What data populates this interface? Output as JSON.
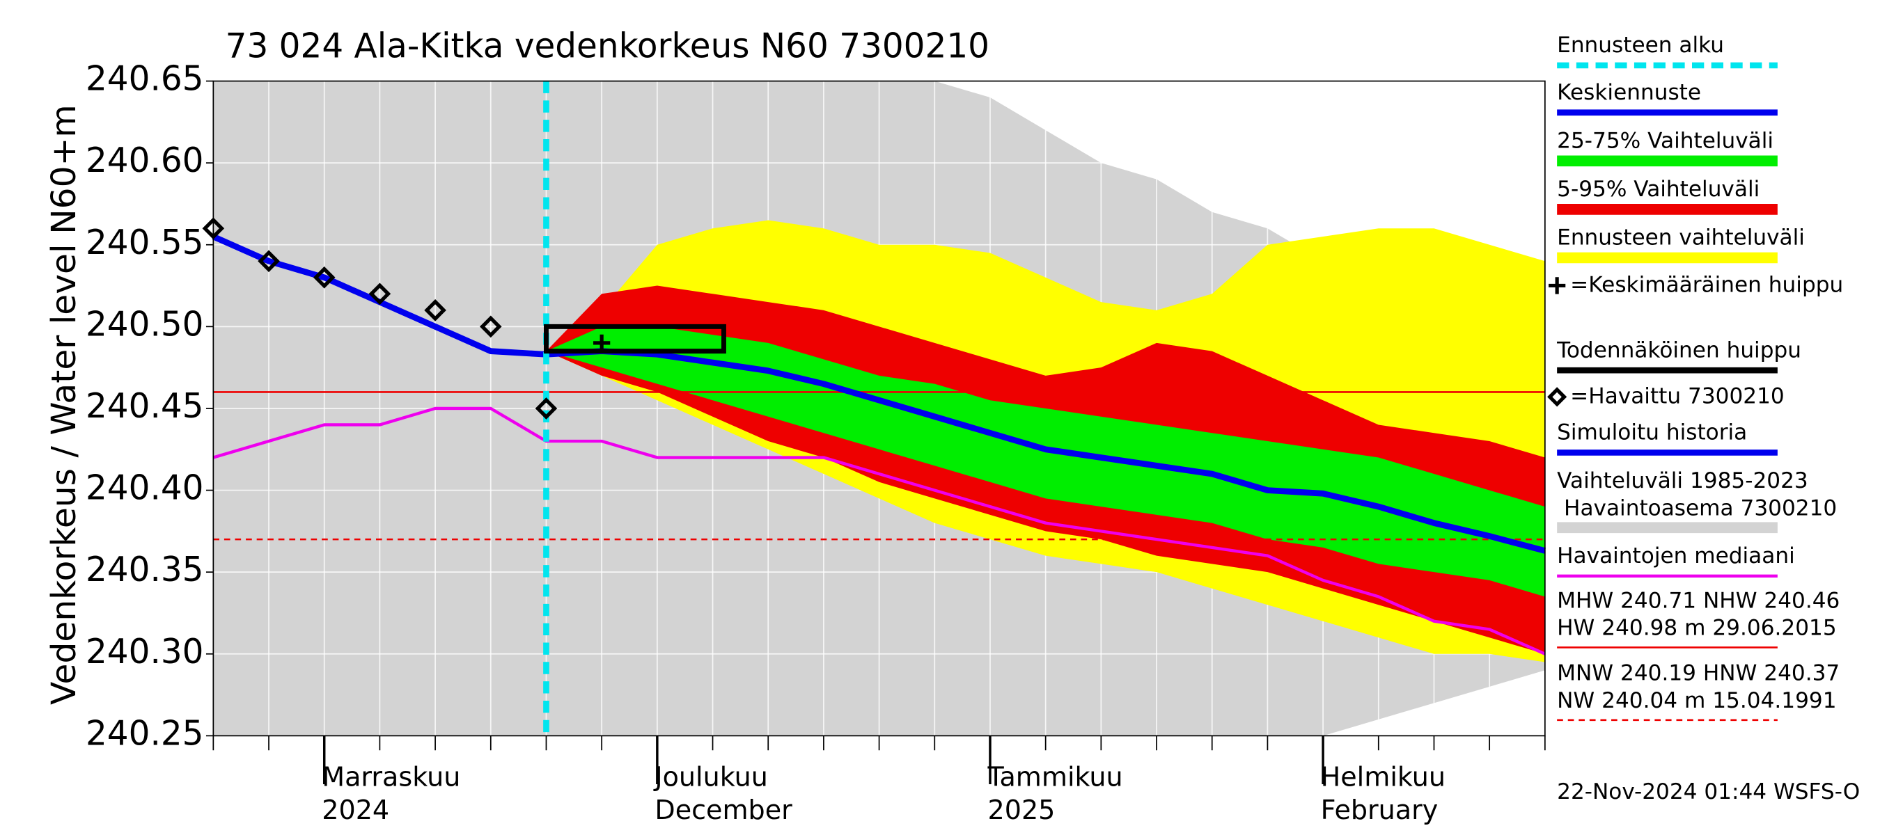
{
  "chart_data": {
    "type": "band-forecast",
    "title": "73 024 Ala-Kitka vedenkorkeus N60 7300210",
    "y_label": "Vedenkorkeus / Water level",
    "y_unit_label": "N60+m",
    "footer": "22-Nov-2024 01:44 WSFS-O",
    "categories": [
      null,
      null,
      "Marraskuu\n2024",
      null,
      null,
      null,
      null,
      null,
      "Joulukuu\nDecember",
      null,
      null,
      null,
      null,
      null,
      "Tammikuu\n2025",
      null,
      null,
      null,
      null,
      null,
      "Helmikuu\nFebruary",
      null,
      null,
      null,
      null
    ],
    "ylim": [
      240.25,
      240.65
    ],
    "yticks": [
      240.25,
      {
        "value": 240.3,
        "label": "240.30"
      },
      240.35,
      {
        "value": 240.4,
        "label": "240.40"
      },
      240.45,
      {
        "value": 240.5,
        "label": "240.50"
      },
      240.55,
      {
        "value": 240.6,
        "label": "240.60"
      },
      240.65
    ],
    "grid": true,
    "series": [
      {
        "name": "Ennusteen alku",
        "kind": "vline",
        "color": "#00e5ee",
        "x": 6
      },
      {
        "name": "Keskiennuste",
        "kind": "line",
        "color": "#0000ee",
        "values": [
          null,
          null,
          null,
          null,
          null,
          null,
          240.483,
          240.485,
          240.483,
          240.478,
          240.473,
          240.465,
          240.455,
          240.445,
          240.435,
          240.425,
          240.42,
          240.415,
          240.41,
          240.4,
          240.398,
          240.39,
          240.38,
          240.372,
          240.363
        ]
      },
      {
        "name": "25-75% Vaihteluväli",
        "kind": "band",
        "color": "#00ee00",
        "upper": [
          null,
          null,
          null,
          null,
          null,
          null,
          240.485,
          240.5,
          240.5,
          240.495,
          240.49,
          240.48,
          240.47,
          240.465,
          240.455,
          240.45,
          240.445,
          240.44,
          240.435,
          240.43,
          240.425,
          240.42,
          240.41,
          240.4,
          240.39
        ],
        "lower": [
          null,
          null,
          null,
          null,
          null,
          null,
          240.485,
          240.475,
          240.465,
          240.455,
          240.445,
          240.435,
          240.425,
          240.415,
          240.405,
          240.395,
          240.39,
          240.385,
          240.38,
          240.37,
          240.365,
          240.355,
          240.35,
          240.345,
          240.335
        ]
      },
      {
        "name": "5-95% Vaihteluväli",
        "kind": "band",
        "color": "#ee0000",
        "upper": [
          null,
          null,
          null,
          null,
          null,
          null,
          240.485,
          240.52,
          240.525,
          240.52,
          240.515,
          240.51,
          240.5,
          240.49,
          240.48,
          240.47,
          240.475,
          240.49,
          240.485,
          240.47,
          240.455,
          240.44,
          240.435,
          240.43,
          240.42
        ],
        "lower": [
          null,
          null,
          null,
          null,
          null,
          null,
          240.485,
          240.47,
          240.46,
          240.445,
          240.43,
          240.42,
          240.405,
          240.395,
          240.385,
          240.375,
          240.37,
          240.36,
          240.355,
          240.35,
          240.34,
          240.33,
          240.32,
          240.31,
          240.3
        ]
      },
      {
        "name": "Ennusteen vaihteluväli",
        "kind": "band",
        "color": "#ffff00",
        "upper": [
          null,
          null,
          null,
          null,
          null,
          null,
          240.485,
          240.51,
          240.55,
          240.56,
          240.565,
          240.56,
          240.55,
          240.55,
          240.545,
          240.53,
          240.515,
          240.51,
          240.52,
          240.55,
          240.555,
          240.56,
          240.56,
          240.55,
          240.54
        ],
        "lower": [
          null,
          null,
          null,
          null,
          null,
          null,
          240.485,
          240.47,
          240.455,
          240.44,
          240.425,
          240.41,
          240.395,
          240.38,
          240.37,
          240.36,
          240.355,
          240.35,
          240.34,
          240.33,
          240.32,
          240.31,
          240.3,
          240.3,
          240.295
        ]
      },
      {
        "name": "=Keskimääräinen huippu",
        "kind": "plus",
        "color": "#000000",
        "x": 7,
        "value": 240.49
      },
      {
        "name": "Todennäköinen huippu",
        "kind": "box",
        "color": "#000000",
        "x": [
          6,
          9.2
        ],
        "values": [
          240.485,
          240.5
        ]
      },
      {
        "name": "=Havaittu 7300210",
        "kind": "scatter",
        "color": "#000000",
        "values": [
          240.56,
          240.54,
          240.53,
          240.52,
          240.51,
          240.5,
          240.45,
          null,
          null,
          null,
          null,
          null,
          null,
          null,
          null,
          null,
          null,
          null,
          null,
          null,
          null,
          null,
          null,
          null,
          null
        ]
      },
      {
        "name": "Simuloitu historia",
        "kind": "line",
        "color": "#0000ee",
        "values": [
          240.555,
          240.54,
          240.53,
          240.515,
          240.5,
          240.485,
          240.483,
          null,
          null,
          null,
          null,
          null,
          null,
          null,
          null,
          null,
          null,
          null,
          null,
          null,
          null,
          null,
          null,
          null,
          null
        ]
      },
      {
        "name": "Vaihteluväli 1985-2023\n Havaintoasema 7300210",
        "kind": "band",
        "color": "#d3d3d3",
        "upper": [
          240.65,
          240.65,
          240.65,
          240.65,
          240.65,
          240.65,
          240.65,
          240.65,
          240.65,
          240.65,
          240.65,
          240.65,
          240.65,
          240.65,
          240.64,
          240.62,
          240.6,
          240.59,
          240.57,
          240.56,
          240.54,
          240.53,
          240.51,
          240.5,
          240.48
        ],
        "lower": [
          240.25,
          240.25,
          240.25,
          240.25,
          240.25,
          240.25,
          240.25,
          240.25,
          240.25,
          240.25,
          240.25,
          240.25,
          240.25,
          240.25,
          240.25,
          240.25,
          240.25,
          240.25,
          240.25,
          240.25,
          240.25,
          240.26,
          240.27,
          240.28,
          240.29
        ]
      },
      {
        "name": "Havaintojen mediaani",
        "kind": "line",
        "color": "#ee00ee",
        "values": [
          240.42,
          240.43,
          240.44,
          240.44,
          240.45,
          240.45,
          240.43,
          240.43,
          240.42,
          240.42,
          240.42,
          240.42,
          240.41,
          240.4,
          240.39,
          240.38,
          240.375,
          240.37,
          240.365,
          240.36,
          240.345,
          240.335,
          240.32,
          240.315,
          240.3
        ]
      },
      {
        "name": "MHW 240.71 NHW 240.46\nHW 240.98 m 29.06.2015",
        "kind": "hline",
        "color": "#ee0000",
        "value": 240.46
      },
      {
        "name": "MNW 240.19 HNW 240.37\nNW 240.04 m 15.04.1991",
        "kind": "hline-dashed",
        "color": "#ee0000",
        "value": 240.37
      }
    ]
  }
}
